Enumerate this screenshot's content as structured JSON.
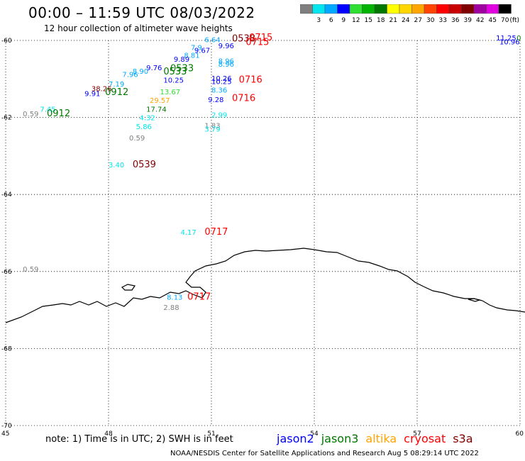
{
  "header": {
    "title": "00:00 – 11:59 UTC 08/03/2022",
    "subtitle": "12 hour collection of altimeter wave heights"
  },
  "colorbar": {
    "unit": "(ft)",
    "bins": [
      {
        "label": "",
        "color": "#7f7f7f"
      },
      {
        "label": "3",
        "color": "#00e5ee"
      },
      {
        "label": "6",
        "color": "#00a8ff"
      },
      {
        "label": "9",
        "color": "#0000ff"
      },
      {
        "label": "12",
        "color": "#30e030"
      },
      {
        "label": "15",
        "color": "#00b400"
      },
      {
        "label": "18",
        "color": "#007800"
      },
      {
        "label": "21",
        "color": "#ffff00"
      },
      {
        "label": "24",
        "color": "#ffd700"
      },
      {
        "label": "27",
        "color": "#ffa500"
      },
      {
        "label": "30",
        "color": "#ff4500"
      },
      {
        "label": "33",
        "color": "#ff0000"
      },
      {
        "label": "36",
        "color": "#c80000"
      },
      {
        "label": "39",
        "color": "#800000"
      },
      {
        "label": "42",
        "color": "#a000a0"
      },
      {
        "label": "45",
        "color": "#e000e0"
      },
      {
        "label": "70",
        "color": "#000000"
      }
    ]
  },
  "axes": {
    "lon_ticks": [
      "45",
      "48",
      "51",
      "54",
      "57",
      "60"
    ],
    "lat_ticks": [
      "-60",
      "-62",
      "-64",
      "-66",
      "-68",
      "-70"
    ]
  },
  "observations": [
    {
      "text": "6.64",
      "lon": 50.8,
      "lat": -60.05,
      "color": "#00a8ff"
    },
    {
      "text": "0538",
      "lon": 51.6,
      "lat": -60.03,
      "color": "#800000"
    },
    {
      "text": "0715",
      "lon": 52.1,
      "lat": -60.0,
      "color": "#ff0000"
    },
    {
      "text": "0715",
      "lon": 52.0,
      "lat": -60.12,
      "color": "#ff0000"
    },
    {
      "text": "9.96",
      "lon": 51.2,
      "lat": -60.2,
      "color": "#0000ff"
    },
    {
      "text": "7.9",
      "lon": 50.4,
      "lat": -60.25,
      "color": "#00a8ff"
    },
    {
      "text": "9.67",
      "lon": 50.5,
      "lat": -60.32,
      "color": "#0000ff"
    },
    {
      "text": "8.81",
      "lon": 50.2,
      "lat": -60.45,
      "color": "#00a8ff"
    },
    {
      "text": "9.89",
      "lon": 49.9,
      "lat": -60.55,
      "color": "#0000ff"
    },
    {
      "text": "9.76",
      "lon": 49.1,
      "lat": -60.77,
      "color": "#0000ff"
    },
    {
      "text": "8.90",
      "lon": 48.7,
      "lat": -60.87,
      "color": "#00a8ff"
    },
    {
      "text": "7.96",
      "lon": 48.4,
      "lat": -60.95,
      "color": "#00a8ff"
    },
    {
      "text": "0533",
      "lon": 49.8,
      "lat": -60.8,
      "color": "#007800"
    },
    {
      "text": "0533",
      "lon": 49.6,
      "lat": -60.88,
      "color": "#007800"
    },
    {
      "text": "8.96",
      "lon": 51.2,
      "lat": -60.6,
      "color": "#00a8ff"
    },
    {
      "text": "8.96",
      "lon": 51.2,
      "lat": -60.68,
      "color": "#00a8ff"
    },
    {
      "text": "10.25",
      "lon": 49.6,
      "lat": -61.1,
      "color": "#0000ff"
    },
    {
      "text": "10.26",
      "lon": 51.0,
      "lat": -61.05,
      "color": "#0000ff"
    },
    {
      "text": "10.25",
      "lon": 51.0,
      "lat": -61.13,
      "color": "#0000ff"
    },
    {
      "text": "0716",
      "lon": 51.8,
      "lat": -61.1,
      "color": "#ff0000"
    },
    {
      "text": "8.36",
      "lon": 51.0,
      "lat": -61.35,
      "color": "#00a8ff"
    },
    {
      "text": "9.28",
      "lon": 50.9,
      "lat": -61.6,
      "color": "#0000ff"
    },
    {
      "text": "0716",
      "lon": 51.6,
      "lat": -61.57,
      "color": "#ff0000"
    },
    {
      "text": "7.19",
      "lon": 48.0,
      "lat": -61.2,
      "color": "#00a8ff"
    },
    {
      "text": "38.26",
      "lon": 47.5,
      "lat": -61.32,
      "color": "#800000"
    },
    {
      "text": "9.91",
      "lon": 47.3,
      "lat": -61.45,
      "color": "#0000ff"
    },
    {
      "text": "0912",
      "lon": 47.9,
      "lat": -61.42,
      "color": "#007800"
    },
    {
      "text": "13.67",
      "lon": 49.5,
      "lat": -61.4,
      "color": "#30e030"
    },
    {
      "text": "29.57",
      "lon": 49.2,
      "lat": -61.62,
      "color": "#ffa500"
    },
    {
      "text": "17.74",
      "lon": 49.1,
      "lat": -61.85,
      "color": "#007800"
    },
    {
      "text": "7.45",
      "lon": 46.0,
      "lat": -61.85,
      "color": "#00e5ee"
    },
    {
      "text": "0.59",
      "lon": 45.5,
      "lat": -61.97,
      "color": "#7f7f7f"
    },
    {
      "text": "0912",
      "lon": 46.2,
      "lat": -61.97,
      "color": "#007800"
    },
    {
      "text": "4.32",
      "lon": 48.9,
      "lat": -62.07,
      "color": "#00e5ee"
    },
    {
      "text": "2.99",
      "lon": 51.0,
      "lat": -62.0,
      "color": "#00e5ee"
    },
    {
      "text": "5.86",
      "lon": 48.8,
      "lat": -62.3,
      "color": "#00e5ee"
    },
    {
      "text": "1.83",
      "lon": 50.8,
      "lat": -62.27,
      "color": "#7f7f7f"
    },
    {
      "text": "3.79",
      "lon": 50.8,
      "lat": -62.37,
      "color": "#00e5ee"
    },
    {
      "text": "0.59",
      "lon": 48.6,
      "lat": -62.6,
      "color": "#7f7f7f"
    },
    {
      "text": "3.40",
      "lon": 48.0,
      "lat": -63.3,
      "color": "#00e5ee"
    },
    {
      "text": "0539",
      "lon": 48.7,
      "lat": -63.3,
      "color": "#800000"
    },
    {
      "text": "4.17",
      "lon": 50.1,
      "lat": -65.05,
      "color": "#00e5ee"
    },
    {
      "text": "0717",
      "lon": 50.8,
      "lat": -65.05,
      "color": "#ff0000"
    },
    {
      "text": "0.59",
      "lon": 45.5,
      "lat": -66.0,
      "color": "#7f7f7f"
    },
    {
      "text": "8.13",
      "lon": 49.7,
      "lat": -66.73,
      "color": "#00a8ff"
    },
    {
      "text": "0717",
      "lon": 50.3,
      "lat": -66.73,
      "color": "#ff0000"
    },
    {
      "text": "2.88",
      "lon": 49.6,
      "lat": -67.0,
      "color": "#7f7f7f"
    },
    {
      "text": "11.25",
      "lon": 59.3,
      "lat": -60.0,
      "color": "#0000ff"
    },
    {
      "text": "10.96",
      "lon": 59.4,
      "lat": -60.1,
      "color": "#0000ff"
    },
    {
      "text": "0",
      "lon": 59.9,
      "lat": -60.0,
      "color": "#007800"
    }
  ],
  "footer": {
    "note": "note:  1) Time is in UTC;  2) SWH is in feet",
    "satellites": [
      {
        "name": "jason2",
        "color": "#0000ff"
      },
      {
        "name": "jason3",
        "color": "#007800"
      },
      {
        "name": "altika",
        "color": "#ffa500"
      },
      {
        "name": "cryosat",
        "color": "#ff0000"
      },
      {
        "name": "s3a",
        "color": "#800000"
      }
    ],
    "credit": "NOAA/NESDIS Center for Satellite Applications and Research    Aug  5 08:29:14 UTC 2022"
  }
}
